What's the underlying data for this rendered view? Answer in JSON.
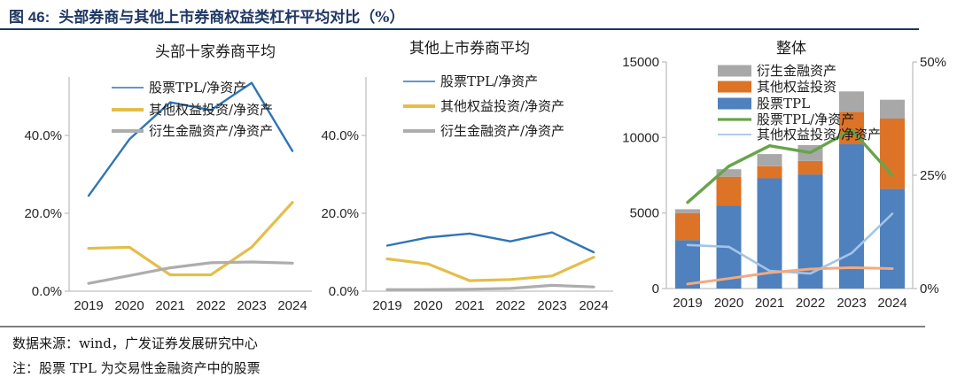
{
  "header": {
    "label": "图  46:",
    "title": "头部券商与其他上市券商权益类杠杆平均对比（%）",
    "accent_color": "#17375E"
  },
  "footer": {
    "source": "数据来源：wind，广发证券发展研究中心",
    "note": "注：股票 TPL 为交易性金融资产中的股票"
  },
  "chart_data": [
    {
      "type": "line",
      "title": "头部十家券商平均",
      "x": [
        "2019",
        "2020",
        "2021",
        "2022",
        "2023",
        "2024"
      ],
      "ylabel": "",
      "ylim": [
        0,
        55
      ],
      "grid": false,
      "legend_position": "top-inside",
      "yticks": [
        {
          "v": 0,
          "label": "0.0%"
        },
        {
          "v": 20,
          "label": "20.0%"
        },
        {
          "v": 40,
          "label": "40.0%"
        }
      ],
      "series": [
        {
          "name": "股票TPL/净资产",
          "color": "#2E75B6",
          "width": 2.4,
          "legend_thin": true,
          "values": [
            24.5,
            39.0,
            48.5,
            46.5,
            53.5,
            36.0
          ]
        },
        {
          "name": "其他权益投资/净资产",
          "color": "#E4BE4A",
          "width": 3.2,
          "values": [
            11.0,
            11.3,
            4.2,
            4.2,
            11.3,
            22.8
          ]
        },
        {
          "name": "衍生金融资产/净资产",
          "color": "#ADADAD",
          "width": 3.2,
          "values": [
            2.0,
            4.0,
            6.0,
            7.3,
            7.5,
            7.2
          ]
        }
      ]
    },
    {
      "type": "line",
      "title": "其他上市券商平均",
      "x": [
        "2019",
        "2020",
        "2021",
        "2022",
        "2023",
        "2024"
      ],
      "ylabel": "",
      "ylim": [
        0,
        55
      ],
      "grid": false,
      "legend_position": "top-inside",
      "yticks": [
        {
          "v": 0,
          "label": "0.0%"
        },
        {
          "v": 20,
          "label": "20.0%"
        },
        {
          "v": 40,
          "label": "40.0%"
        }
      ],
      "series": [
        {
          "name": "股票TPL/净资产",
          "color": "#2E75B6",
          "width": 2.4,
          "legend_thin": true,
          "values": [
            11.7,
            13.8,
            14.8,
            12.8,
            15.1,
            10.0
          ]
        },
        {
          "name": "其他权益投资/净资产",
          "color": "#E4BE4A",
          "width": 3.2,
          "values": [
            8.3,
            7.0,
            2.7,
            3.0,
            3.9,
            8.7
          ]
        },
        {
          "name": "衍生金融资产/净资产",
          "color": "#ADADAD",
          "width": 3.2,
          "values": [
            0.4,
            0.4,
            0.5,
            0.7,
            1.5,
            1.1
          ]
        }
      ]
    },
    {
      "type": "combo",
      "title": "整体",
      "x": [
        "2019",
        "2020",
        "2021",
        "2022",
        "2023",
        "2024"
      ],
      "left_ylim": [
        0,
        15000
      ],
      "left_yticks": [
        0,
        5000,
        10000,
        15000
      ],
      "right_ylim": [
        0,
        50
      ],
      "right_yticks": [
        {
          "v": 0,
          "label": "0%"
        },
        {
          "v": 25,
          "label": "25%"
        },
        {
          "v": 50,
          "label": "50%"
        }
      ],
      "bars_stacked": true,
      "bars": [
        {
          "name": "股票TPL",
          "color": "#4E81BD",
          "values": [
            3200,
            5500,
            7300,
            7550,
            9550,
            6600
          ]
        },
        {
          "name": "其他权益投资",
          "color": "#DD7327",
          "values": [
            1800,
            1900,
            800,
            900,
            2150,
            4650
          ]
        },
        {
          "name": "衍生金融资产",
          "color": "#A8A8A8",
          "values": [
            250,
            500,
            800,
            1050,
            1350,
            1250
          ]
        }
      ],
      "lines": [
        {
          "name": "股票TPL/净资产",
          "color": "#67A44B",
          "width": 3.4,
          "axis": "right",
          "values": [
            19.0,
            27.0,
            31.5,
            30.0,
            35.0,
            25.0
          ]
        },
        {
          "name": "其他权益投资/净资产",
          "color": "#A3C4E8",
          "width": 2.6,
          "axis": "right",
          "values": [
            9.6,
            9.2,
            3.9,
            3.3,
            7.8,
            16.5
          ]
        },
        {
          "name": "",
          "color": "#F4A97E",
          "width": 3.0,
          "axis": "right",
          "in_legend": false,
          "values": [
            1.0,
            2.2,
            3.5,
            4.3,
            4.6,
            4.4
          ]
        }
      ],
      "legend": [
        {
          "name": "衍生金融资产",
          "swatch": "bar",
          "color": "#A8A8A8"
        },
        {
          "name": "其他权益投资",
          "swatch": "bar",
          "color": "#DD7327"
        },
        {
          "name": "股票TPL",
          "swatch": "bar",
          "color": "#4E81BD"
        },
        {
          "name": "股票TPL/净资产",
          "swatch": "line",
          "color": "#67A44B",
          "thin": false
        },
        {
          "name": "其他权益投资/净资产",
          "swatch": "line",
          "color": "#A3C4E8",
          "thin": true
        }
      ]
    }
  ]
}
